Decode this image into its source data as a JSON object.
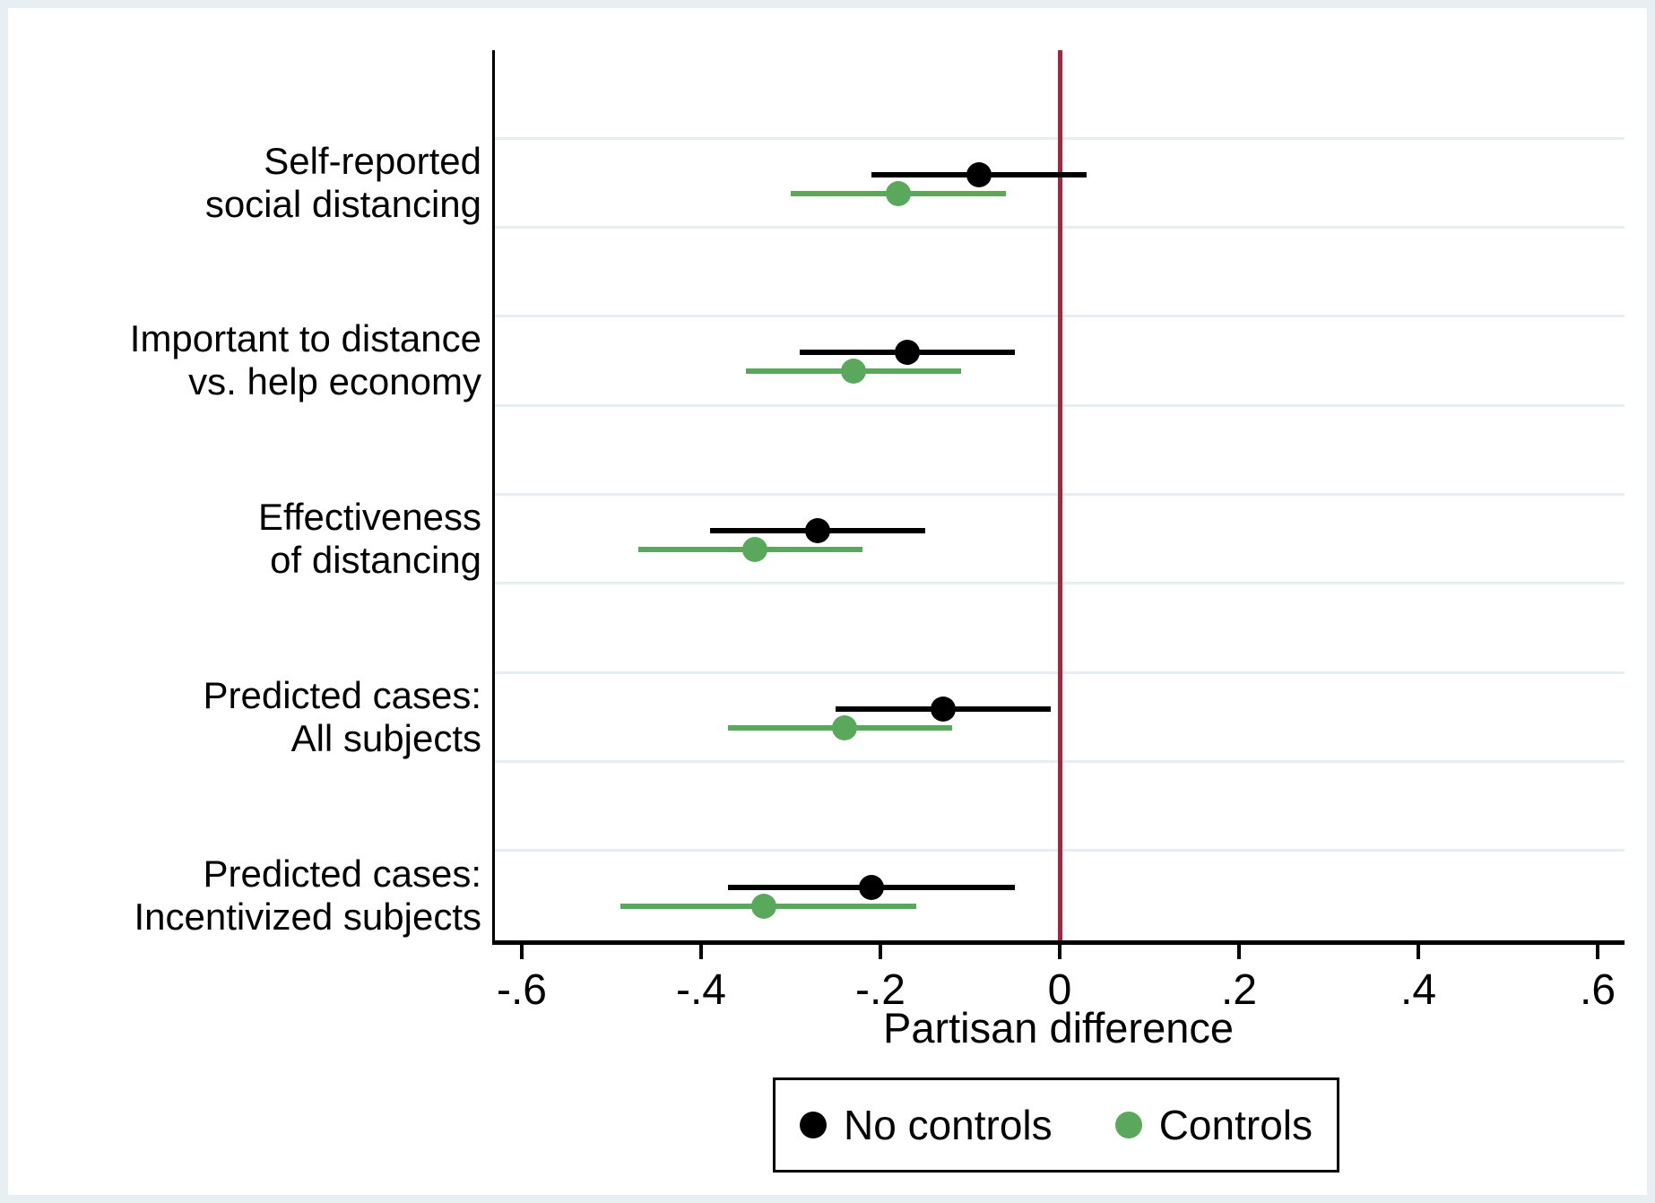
{
  "chart_data": {
    "type": "scatter",
    "subtype": "dot-and-whisker coefficient plot",
    "title": "",
    "xlabel": "Partisan difference",
    "ylabel": "",
    "grid": true,
    "legend_position": "bottom-boxed",
    "x_axis": {
      "min": -0.63,
      "max": 0.63,
      "ticks": [
        -0.6,
        -0.4,
        -0.2,
        0,
        0.2,
        0.4,
        0.6
      ],
      "tick_labels": [
        "-.6",
        "-.4",
        "-.2",
        "0",
        ".2",
        ".4",
        ".6"
      ]
    },
    "reference_line": {
      "x": 0
    },
    "series": [
      {
        "name": "No controls",
        "color": "#000000"
      },
      {
        "name": "Controls",
        "color": "#5aa85c"
      }
    ],
    "rows": [
      {
        "label_lines": [
          "Self-reported",
          "social distancing"
        ],
        "no_controls": {
          "est": -0.09,
          "lo": -0.21,
          "hi": 0.03
        },
        "controls": {
          "est": -0.18,
          "lo": -0.3,
          "hi": -0.06
        }
      },
      {
        "label_lines": [
          "Important to distance",
          "vs. help economy"
        ],
        "no_controls": {
          "est": -0.17,
          "lo": -0.29,
          "hi": -0.05
        },
        "controls": {
          "est": -0.23,
          "lo": -0.35,
          "hi": -0.11
        }
      },
      {
        "label_lines": [
          "Effectiveness",
          "of distancing"
        ],
        "no_controls": {
          "est": -0.27,
          "lo": -0.39,
          "hi": -0.15
        },
        "controls": {
          "est": -0.34,
          "lo": -0.47,
          "hi": -0.22
        }
      },
      {
        "label_lines": [
          "Predicted cases:",
          "All subjects"
        ],
        "no_controls": {
          "est": -0.13,
          "lo": -0.25,
          "hi": -0.01
        },
        "controls": {
          "est": -0.24,
          "lo": -0.37,
          "hi": -0.12
        }
      },
      {
        "label_lines": [
          "Predicted cases:",
          "Incentivized subjects"
        ],
        "no_controls": {
          "est": -0.21,
          "lo": -0.37,
          "hi": -0.05
        },
        "controls": {
          "est": -0.33,
          "lo": -0.49,
          "hi": -0.16
        }
      }
    ],
    "colors": {
      "no_controls": "#000000",
      "controls": "#5aa85c",
      "zero_line": "#a4263c",
      "gridline": "#e7eef2",
      "frame": "#e8eff3",
      "axis": "#000000"
    }
  }
}
